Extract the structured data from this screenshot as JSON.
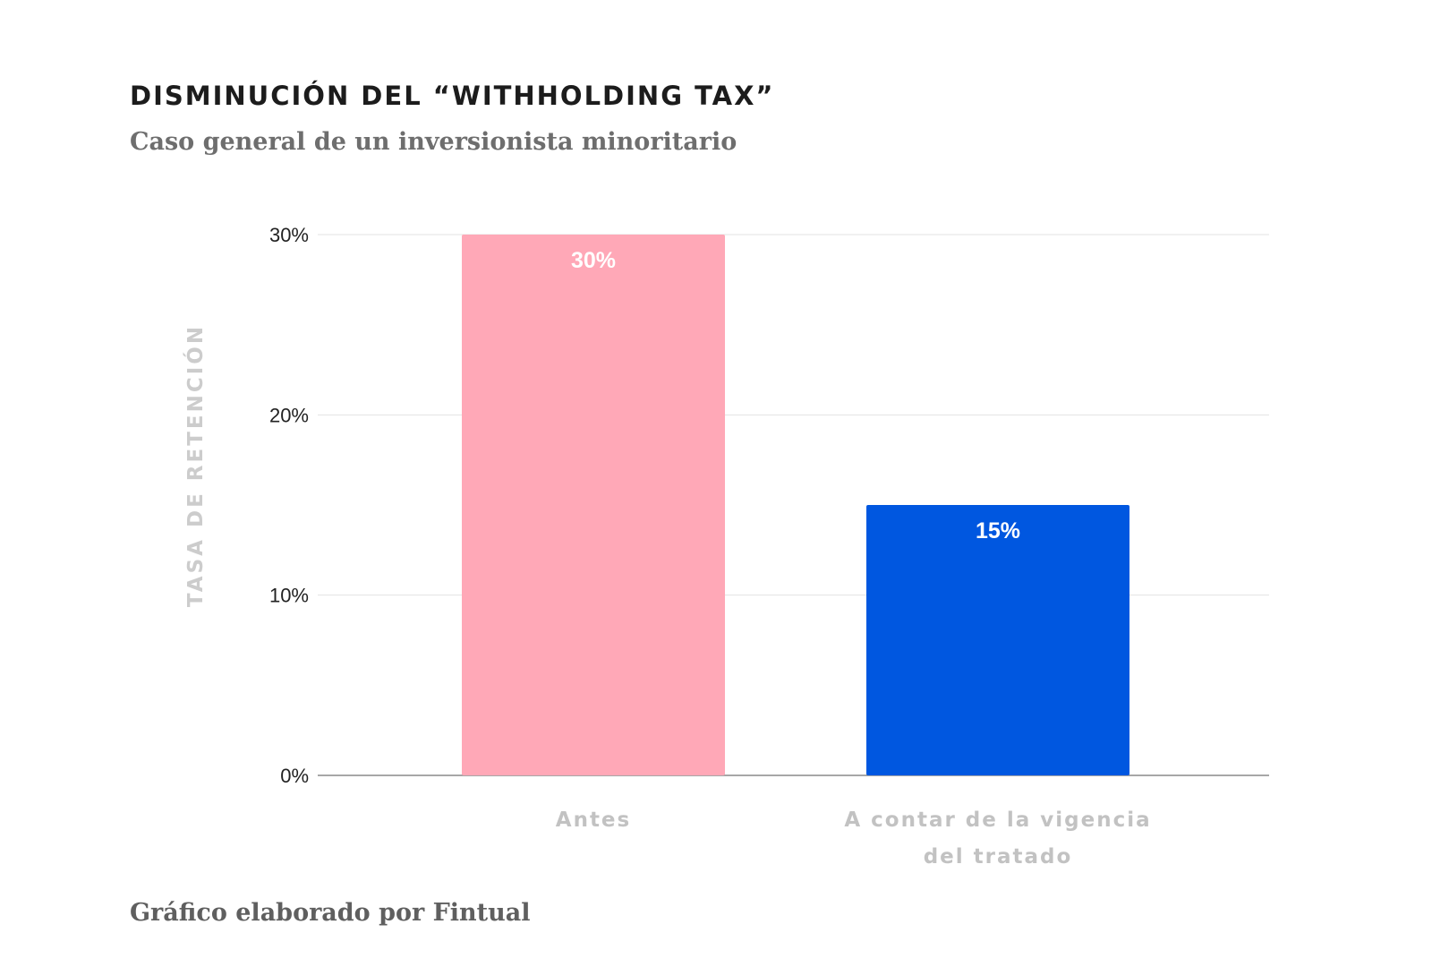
{
  "chart_data": {
    "type": "bar",
    "title": "DISMINUCIÓN DEL “WITHHOLDING TAX”",
    "subtitle": "Caso general de un inversionista minoritario",
    "xlabel": "",
    "ylabel": "TASA DE RETENCIÓN",
    "categories": [
      [
        "Antes"
      ],
      [
        "A contar de la vigencia",
        "del tratado"
      ]
    ],
    "values": [
      30,
      15
    ],
    "data_labels": [
      "30%",
      "15%"
    ],
    "bar_colors": [
      "#FFA8B7",
      "#0057E0"
    ],
    "ylim": [
      0,
      30
    ],
    "yticks": [
      0,
      10,
      20,
      30
    ],
    "ytick_labels": [
      "0%",
      "10%",
      "20%",
      "30%"
    ],
    "grid": true,
    "legend": "none"
  },
  "footer": "Gráfico elaborado por Fintual"
}
